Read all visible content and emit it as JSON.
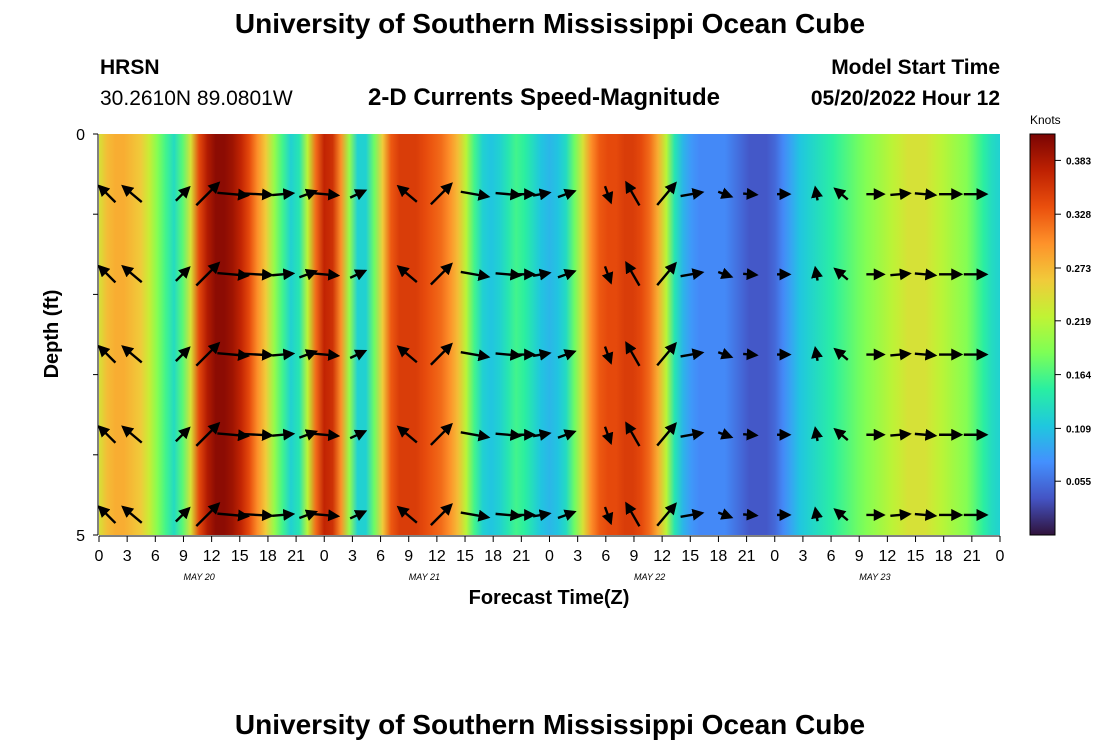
{
  "page": {
    "title_top": "University of Southern Mississippi Ocean Cube",
    "title_bottom": "University of Southern Mississippi Ocean Cube",
    "station_code": "HRSN",
    "station_coords": "30.2610N  89.0801W",
    "subtitle": "2-D Currents Speed-Magnitude",
    "model_label": "Model Start Time",
    "model_time": "05/20/2022 Hour 12"
  },
  "colors": {
    "scale": [
      "#30123b",
      "#4454c4",
      "#4490fe",
      "#1fc8de",
      "#29efa2",
      "#7dff56",
      "#c1f334",
      "#f1ca3a",
      "#fe922a",
      "#ea4f0d",
      "#be2102",
      "#7a0403"
    ],
    "arrow": "#000000"
  },
  "chart_data": {
    "type": "heatmap",
    "title": "2-D Currents Speed-Magnitude",
    "xlabel": "Forecast Time(Z)",
    "ylabel": "Depth (ft)",
    "ylim": [
      0,
      5
    ],
    "y_tick_labels": [
      "0",
      "5"
    ],
    "x_tick_labels": [
      "0",
      "3",
      "6",
      "9",
      "12",
      "15",
      "18",
      "21",
      "0",
      "3",
      "6",
      "9",
      "12",
      "15",
      "18",
      "21",
      "0",
      "3",
      "6",
      "9",
      "12",
      "15",
      "18",
      "21",
      "0",
      "3",
      "6",
      "9",
      "12",
      "15",
      "18",
      "21",
      "0"
    ],
    "day_labels": [
      {
        "label": "MAY 20",
        "hour": 12
      },
      {
        "label": "MAY 21",
        "hour": 39
      },
      {
        "label": "MAY 22",
        "hour": 66
      },
      {
        "label": "MAY 23",
        "hour": 93
      }
    ],
    "x_range_hours": [
      0,
      108
    ],
    "colorbar": {
      "label": "Knots",
      "range": [
        0,
        0.41
      ],
      "ticks": [
        "0.383",
        "0.328",
        "0.273",
        "0.219",
        "0.164",
        "0.109",
        "0.055"
      ]
    },
    "speed_profile": {
      "hours": [
        0,
        1,
        2,
        3,
        4,
        5,
        6,
        7,
        8,
        9,
        10,
        11,
        12,
        13,
        14,
        15,
        16,
        17,
        18,
        19,
        20,
        21,
        22,
        23,
        24,
        25,
        26,
        27,
        28,
        29,
        30,
        31,
        32,
        33,
        34,
        35,
        36,
        37,
        38,
        39,
        40,
        41,
        42,
        43,
        44,
        45,
        46,
        47,
        48,
        49,
        50,
        51,
        52,
        53,
        54,
        55,
        56,
        57,
        58,
        59,
        60,
        61,
        62,
        63,
        64,
        65,
        66,
        67,
        68,
        69,
        70,
        71,
        72,
        73,
        74,
        75,
        76,
        77,
        78,
        79,
        80,
        81,
        82,
        83,
        84,
        85,
        86,
        87,
        88,
        89,
        90,
        91,
        92,
        93,
        94,
        95,
        96,
        97,
        98,
        99,
        100,
        101,
        102,
        103,
        104,
        105,
        106,
        107,
        108
      ],
      "values": [
        0.24,
        0.27,
        0.28,
        0.28,
        0.27,
        0.26,
        0.23,
        0.19,
        0.16,
        0.13,
        0.17,
        0.24,
        0.34,
        0.38,
        0.4,
        0.4,
        0.39,
        0.37,
        0.34,
        0.3,
        0.26,
        0.2,
        0.16,
        0.12,
        0.14,
        0.22,
        0.32,
        0.37,
        0.36,
        0.3,
        0.2,
        0.12,
        0.12,
        0.18,
        0.26,
        0.33,
        0.35,
        0.35,
        0.35,
        0.34,
        0.33,
        0.32,
        0.3,
        0.27,
        0.22,
        0.16,
        0.12,
        0.11,
        0.12,
        0.14,
        0.16,
        0.15,
        0.13,
        0.11,
        0.1,
        0.11,
        0.13,
        0.18,
        0.24,
        0.3,
        0.33,
        0.34,
        0.34,
        0.35,
        0.35,
        0.34,
        0.32,
        0.28,
        0.22,
        0.14,
        0.1,
        0.08,
        0.07,
        0.07,
        0.07,
        0.07,
        0.06,
        0.05,
        0.04,
        0.04,
        0.04,
        0.05,
        0.07,
        0.09,
        0.11,
        0.12,
        0.13,
        0.14,
        0.15,
        0.16,
        0.17,
        0.18,
        0.19,
        0.2,
        0.21,
        0.22,
        0.23,
        0.24,
        0.24,
        0.24,
        0.23,
        0.22,
        0.21,
        0.2,
        0.19,
        0.17,
        0.15,
        0.13,
        0.12
      ]
    },
    "vectors": {
      "hours": [
        1,
        4,
        10,
        13,
        16,
        19,
        22,
        25,
        27,
        31,
        37,
        41,
        45,
        49,
        51,
        53,
        56,
        61,
        64,
        68,
        71,
        75,
        78,
        82,
        86,
        89,
        93,
        96,
        99,
        102,
        105
      ],
      "angles_deg": [
        135,
        140,
        45,
        45,
        -5,
        -3,
        5,
        20,
        -5,
        25,
        140,
        45,
        -10,
        -5,
        0,
        10,
        20,
        -70,
        120,
        50,
        10,
        -20,
        -5,
        0,
        100,
        140,
        0,
        5,
        -5,
        0,
        0
      ],
      "magnitudes": [
        0.24,
        0.27,
        0.16,
        0.4,
        0.38,
        0.34,
        0.2,
        0.14,
        0.32,
        0.12,
        0.26,
        0.35,
        0.33,
        0.27,
        0.16,
        0.12,
        0.14,
        0.13,
        0.3,
        0.34,
        0.22,
        0.07,
        0.06,
        0.04,
        0.05,
        0.12,
        0.13,
        0.17,
        0.19,
        0.22,
        0.23
      ],
      "depth_rows_ft": [
        0.75,
        1.75,
        2.75,
        3.75,
        4.75
      ]
    }
  }
}
